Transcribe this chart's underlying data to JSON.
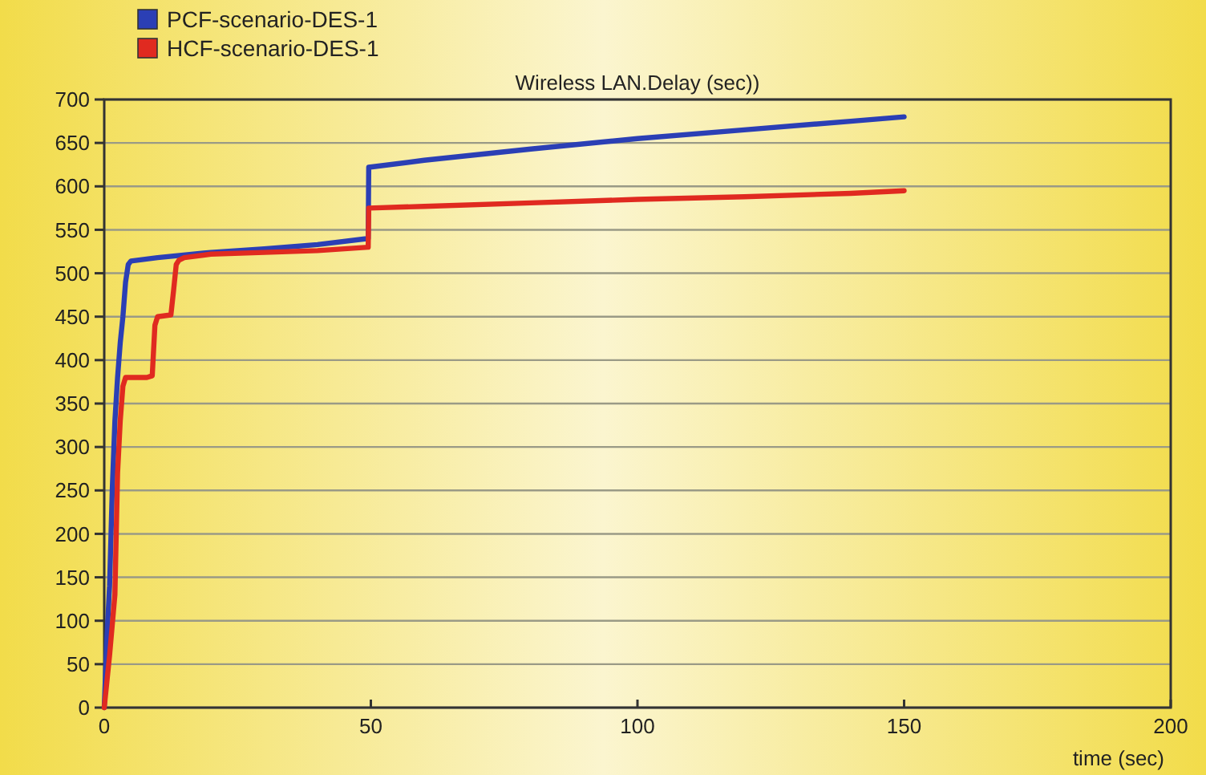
{
  "chart_data": {
    "type": "line",
    "title": "Wireless LAN.Delay (sec))",
    "xlabel": "time (sec)",
    "xlim": [
      0,
      200
    ],
    "xticks": [
      0,
      50,
      100,
      150,
      200
    ],
    "ylim": [
      0,
      700
    ],
    "yticks": [
      0,
      50,
      100,
      150,
      200,
      250,
      300,
      350,
      400,
      450,
      500,
      550,
      600,
      650,
      700
    ],
    "grid": "y",
    "legend": "top left",
    "series": [
      {
        "name": "PCF-scenario-DES-1",
        "color": "#2b3fb5",
        "x": [
          0,
          0.5,
          1,
          1.5,
          2,
          2.5,
          3,
          3.5,
          4,
          4.5,
          5,
          10,
          20,
          30,
          40,
          49.5,
          49.6,
          60,
          80,
          100,
          120,
          140,
          150
        ],
        "values": [
          0,
          80,
          140,
          250,
          330,
          380,
          420,
          450,
          490,
          510,
          514,
          518,
          524,
          528,
          533,
          540,
          622,
          630,
          643,
          655,
          665,
          675,
          680
        ]
      },
      {
        "name": "HCF-scenario-DES-1",
        "color": "#e02a20",
        "x": [
          0,
          1,
          2,
          2.5,
          3,
          3.5,
          4,
          8,
          9,
          9.5,
          10,
          12.5,
          13,
          13.5,
          14,
          15,
          20,
          30,
          40,
          49.5,
          49.6,
          60,
          80,
          100,
          120,
          140,
          150
        ],
        "values": [
          0,
          60,
          130,
          270,
          330,
          370,
          380,
          380,
          382,
          440,
          450,
          452,
          480,
          510,
          515,
          518,
          522,
          524,
          526,
          530,
          575,
          577,
          581,
          585,
          588,
          592,
          595
        ]
      }
    ]
  }
}
